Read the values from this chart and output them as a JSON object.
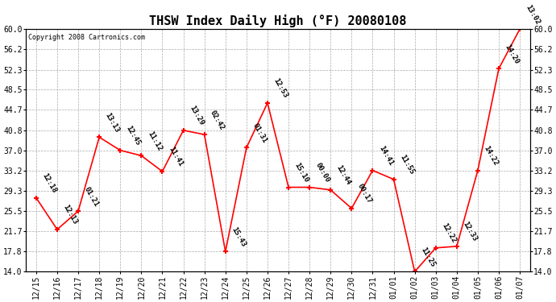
{
  "title": "THSW Index Daily High (°F) 20080108",
  "copyright": "Copyright 2008 Cartronics.com",
  "x_labels": [
    "12/15",
    "12/16",
    "12/17",
    "12/18",
    "12/19",
    "12/20",
    "12/21",
    "12/22",
    "12/23",
    "12/24",
    "12/25",
    "12/26",
    "12/27",
    "12/28",
    "12/29",
    "12/30",
    "12/31",
    "01/01",
    "01/02",
    "01/03",
    "01/04",
    "01/05",
    "01/06",
    "01/07"
  ],
  "y_values": [
    28.0,
    22.0,
    25.5,
    39.5,
    37.0,
    36.0,
    33.0,
    40.8,
    40.0,
    17.8,
    37.5,
    46.0,
    30.0,
    30.0,
    29.5,
    26.0,
    33.2,
    31.5,
    14.0,
    18.5,
    18.8,
    33.2,
    52.5,
    60.0
  ],
  "time_labels": [
    "12:18",
    "12:13",
    "01:21",
    "13:13",
    "12:45",
    "11:12",
    "11:41",
    "13:29",
    "02:42",
    "15:43",
    "01:31",
    "12:53",
    "15:10",
    "00:00",
    "12:44",
    "00:17",
    "14:41",
    "11:55",
    "11:25",
    "12:22",
    "12:33",
    "14:22",
    "14:20",
    "13:02"
  ],
  "ylim": [
    14.0,
    60.0
  ],
  "yticks": [
    14.0,
    17.8,
    21.7,
    25.5,
    29.3,
    33.2,
    37.0,
    40.8,
    44.7,
    48.5,
    52.3,
    56.2,
    60.0
  ],
  "line_color": "#ff0000",
  "marker_color": "#ff0000",
  "bg_color": "#ffffff",
  "grid_color": "#aaaaaa",
  "title_fontsize": 11,
  "tick_fontsize": 7,
  "annot_fontsize": 6.5
}
